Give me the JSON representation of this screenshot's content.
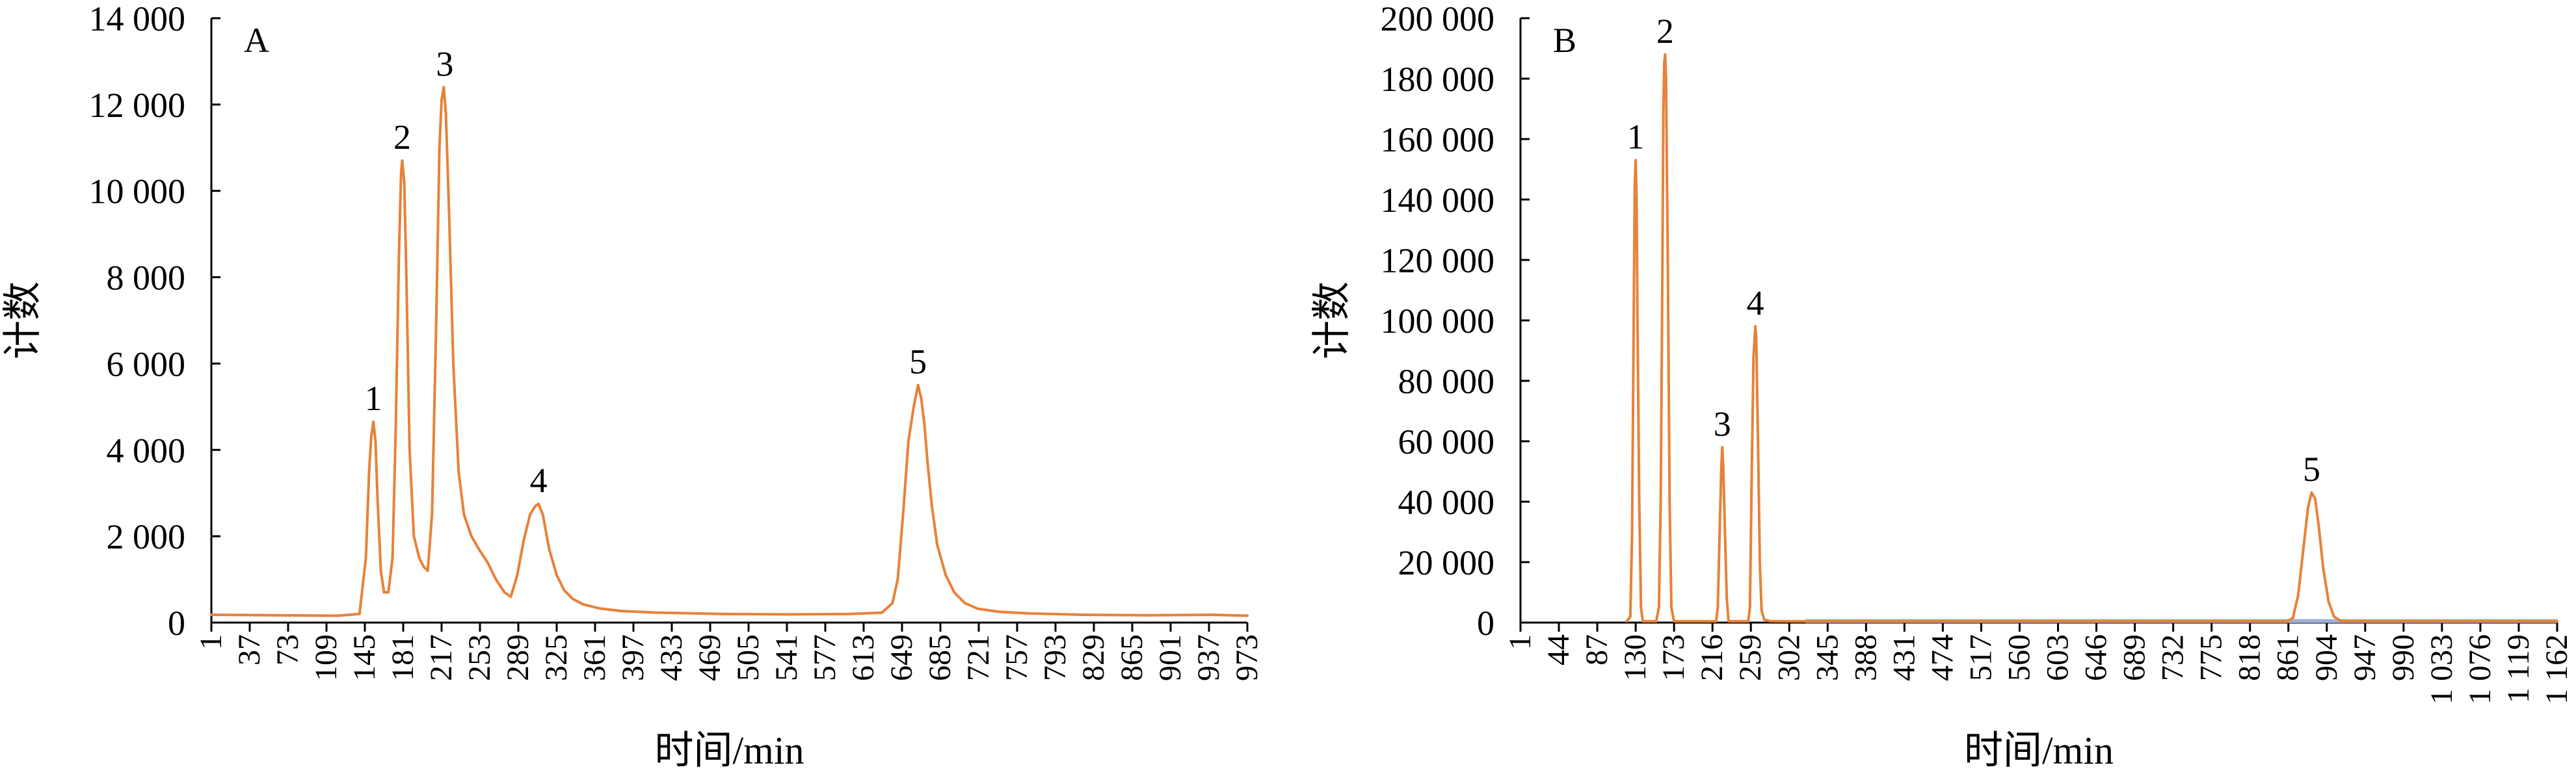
{
  "colors": {
    "series": "#E8813A",
    "baseline": "#9BB0D6",
    "axis": "#000000"
  },
  "chart_data": [
    {
      "type": "line",
      "panel_label": "A",
      "xlabel": "时间/min",
      "ylabel": "计数",
      "x_ticks": [
        "1",
        "37",
        "73",
        "109",
        "145",
        "181",
        "217",
        "253",
        "289",
        "325",
        "361",
        "397",
        "433",
        "469",
        "505",
        "541",
        "577",
        "613",
        "649",
        "685",
        "721",
        "757",
        "793",
        "829",
        "865",
        "901",
        "937",
        "973"
      ],
      "xlim": [
        1,
        973
      ],
      "y_ticks": [
        "0",
        "2 000",
        "4 000",
        "6 000",
        "8 000",
        "10 000",
        "12 000",
        "14 000"
      ],
      "ylim": [
        0,
        14000
      ],
      "peak_labels": [
        {
          "text": "1",
          "x": 153,
          "y": 4650
        },
        {
          "text": "2",
          "x": 180,
          "y": 10700
        },
        {
          "text": "3",
          "x": 220,
          "y": 12400
        },
        {
          "text": "4",
          "x": 308,
          "y": 2750
        },
        {
          "text": "5",
          "x": 664,
          "y": 5500
        }
      ],
      "series": [
        {
          "points": [
            [
              1,
              180
            ],
            [
              60,
              170
            ],
            [
              120,
              160
            ],
            [
              140,
              200
            ],
            [
              146,
              1500
            ],
            [
              149,
              3500
            ],
            [
              151,
              4300
            ],
            [
              153,
              4650
            ],
            [
              155,
              4200
            ],
            [
              157,
              2800
            ],
            [
              160,
              1200
            ],
            [
              163,
              700
            ],
            [
              167,
              700
            ],
            [
              171,
              1500
            ],
            [
              174,
              4500
            ],
            [
              177,
              8500
            ],
            [
              179,
              10400
            ],
            [
              180,
              10700
            ],
            [
              182,
              10200
            ],
            [
              184,
              8000
            ],
            [
              187,
              4000
            ],
            [
              191,
              2000
            ],
            [
              196,
              1500
            ],
            [
              200,
              1300
            ],
            [
              204,
              1200
            ],
            [
              208,
              2500
            ],
            [
              212,
              7000
            ],
            [
              215,
              11000
            ],
            [
              217,
              12100
            ],
            [
              219,
              12400
            ],
            [
              221,
              11800
            ],
            [
              224,
              9500
            ],
            [
              228,
              6000
            ],
            [
              233,
              3500
            ],
            [
              238,
              2500
            ],
            [
              245,
              2000
            ],
            [
              252,
              1700
            ],
            [
              260,
              1400
            ],
            [
              268,
              1000
            ],
            [
              276,
              700
            ],
            [
              282,
              600
            ],
            [
              288,
              1100
            ],
            [
              294,
              1900
            ],
            [
              300,
              2500
            ],
            [
              305,
              2700
            ],
            [
              308,
              2750
            ],
            [
              312,
              2500
            ],
            [
              318,
              1700
            ],
            [
              325,
              1100
            ],
            [
              332,
              750
            ],
            [
              340,
              550
            ],
            [
              350,
              420
            ],
            [
              365,
              330
            ],
            [
              385,
              270
            ],
            [
              420,
              230
            ],
            [
              480,
              200
            ],
            [
              540,
              190
            ],
            [
              600,
              200
            ],
            [
              630,
              230
            ],
            [
              640,
              450
            ],
            [
              645,
              1000
            ],
            [
              650,
              2500
            ],
            [
              655,
              4200
            ],
            [
              660,
              5000
            ],
            [
              664,
              5500
            ],
            [
              667,
              5200
            ],
            [
              670,
              4600
            ],
            [
              673,
              3700
            ],
            [
              677,
              2700
            ],
            [
              682,
              1800
            ],
            [
              690,
              1100
            ],
            [
              698,
              700
            ],
            [
              708,
              450
            ],
            [
              720,
              320
            ],
            [
              740,
              250
            ],
            [
              770,
              210
            ],
            [
              820,
              180
            ],
            [
              880,
              170
            ],
            [
              940,
              180
            ],
            [
              973,
              160
            ]
          ]
        }
      ]
    },
    {
      "type": "line",
      "panel_label": "B",
      "xlabel": "时间/min",
      "ylabel": "计数",
      "x_ticks": [
        "1",
        "44",
        "87",
        "130",
        "173",
        "216",
        "259",
        "302",
        "345",
        "388",
        "431",
        "474",
        "517",
        "560",
        "603",
        "646",
        "689",
        "732",
        "775",
        "818",
        "861",
        "904",
        "947",
        "990",
        "1 033",
        "1 076",
        "1 119",
        "1 162"
      ],
      "xlim": [
        1,
        1162
      ],
      "y_ticks": [
        "0",
        "20 000",
        "40 000",
        "60 000",
        "80 000",
        "100 000",
        "120 000",
        "140 000",
        "160 000",
        "180 000",
        "200 000"
      ],
      "ylim": [
        0,
        200000
      ],
      "peak_labels": [
        {
          "text": "1",
          "x": 130,
          "y": 153000
        },
        {
          "text": "2",
          "x": 163,
          "y": 188000
        },
        {
          "text": "3",
          "x": 227,
          "y": 58000
        },
        {
          "text": "4",
          "x": 264,
          "y": 98000
        },
        {
          "text": "5",
          "x": 887,
          "y": 43000
        }
      ],
      "baseline": {
        "x": [
          320,
          1162
        ],
        "y": 500
      },
      "series": [
        {
          "points": [
            [
              120,
              0
            ],
            [
              124,
              2000
            ],
            [
              126,
              30000
            ],
            [
              128,
              110000
            ],
            [
              129,
              145000
            ],
            [
              130,
              153000
            ],
            [
              131,
              140000
            ],
            [
              132,
              100000
            ],
            [
              134,
              40000
            ],
            [
              136,
              5000
            ],
            [
              138,
              0
            ],
            [
              153,
              0
            ],
            [
              156,
              5000
            ],
            [
              158,
              40000
            ],
            [
              160,
              120000
            ],
            [
              161,
              170000
            ],
            [
              162,
              185000
            ],
            [
              163,
              188000
            ],
            [
              164,
              180000
            ],
            [
              166,
              120000
            ],
            [
              168,
              40000
            ],
            [
              170,
              5000
            ],
            [
              173,
              0
            ],
            [
              220,
              0
            ],
            [
              222,
              5000
            ],
            [
              224,
              30000
            ],
            [
              226,
              52000
            ],
            [
              227,
              58000
            ],
            [
              228,
              52000
            ],
            [
              230,
              30000
            ],
            [
              232,
              8000
            ],
            [
              234,
              0
            ],
            [
              256,
              0
            ],
            [
              258,
              5000
            ],
            [
              260,
              50000
            ],
            [
              262,
              88000
            ],
            [
              264,
              98000
            ],
            [
              265,
              94000
            ],
            [
              267,
              60000
            ],
            [
              269,
              20000
            ],
            [
              271,
              4000
            ],
            [
              274,
              1000
            ],
            [
              280,
              500
            ],
            [
              300,
              400
            ],
            [
              320,
              300
            ],
            [
              860,
              0
            ],
            [
              866,
              1500
            ],
            [
              872,
              9000
            ],
            [
              878,
              25000
            ],
            [
              883,
              38000
            ],
            [
              887,
              43000
            ],
            [
              891,
              41000
            ],
            [
              895,
              32000
            ],
            [
              900,
              18000
            ],
            [
              906,
              7000
            ],
            [
              912,
              2000
            ],
            [
              920,
              500
            ],
            [
              935,
              0
            ],
            [
              1162,
              0
            ]
          ]
        }
      ]
    }
  ]
}
